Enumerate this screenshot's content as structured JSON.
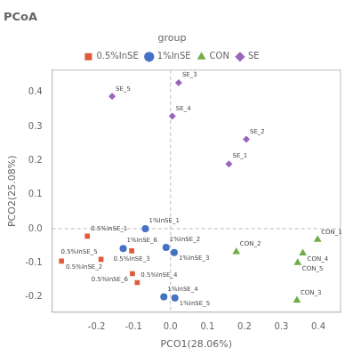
{
  "chart_data": {
    "type": "scatter",
    "title": "PCoA",
    "xlabel": "PCO1(28.06%)",
    "ylabel": "PCO2(25.08%)",
    "xlim": [
      -0.32,
      0.46
    ],
    "ylim": [
      -0.245,
      0.465
    ],
    "xticks": [
      -0.2,
      -0.1,
      {
        "value": 0,
        "label": "0.0"
      },
      0.1,
      0.2,
      0.3,
      0.4
    ],
    "yticks": [
      -0.2,
      -0.1,
      {
        "value": 0,
        "label": "0.0"
      },
      0.1,
      0.2,
      0.3,
      0.4
    ],
    "vline": 0.0,
    "hline": 0.0,
    "grid": false,
    "legend": "top",
    "legend_title": "group",
    "series": [
      {
        "name": "0.5%InSE",
        "color": "#e05a3a",
        "marker": "square",
        "x": [
          -0.225,
          -0.295,
          -0.105,
          -0.09,
          -0.188,
          -0.103
        ],
        "values": [
          -0.022,
          -0.095,
          -0.065,
          -0.158,
          -0.09,
          -0.132
        ],
        "point_labels": [
          "0.5%InSE_1",
          "0.5%InSE_2",
          "0.5%InSE_3",
          "0.5%InSE_4",
          "0.5%InSE_5",
          "0.5%InSE_6"
        ]
      },
      {
        "name": "1%InSE",
        "color": "#4472c4",
        "marker": "circle",
        "x": [
          -0.068,
          -0.012,
          0.01,
          -0.018,
          0.012,
          -0.128
        ],
        "values": [
          0.0,
          -0.055,
          -0.07,
          -0.2,
          -0.203,
          -0.058
        ],
        "point_labels": [
          "1%InSE_1",
          "1%InSE_2",
          "1%InSE_3",
          "1%InSE_4",
          "1%InSE_5",
          "1%InSE_6"
        ]
      },
      {
        "name": "CON",
        "color": "#70ad47",
        "marker": "triangle",
        "x": [
          0.398,
          0.178,
          0.342,
          0.358,
          0.344
        ],
        "values": [
          -0.032,
          -0.068,
          -0.21,
          -0.072,
          -0.1
        ],
        "point_labels": [
          "CON_1",
          "CON_2",
          "CON_3",
          "CON_4",
          "CON_5"
        ]
      },
      {
        "name": "SE",
        "color": "#9966bb",
        "marker": "diamond",
        "x": [
          0.158,
          0.205,
          0.022,
          0.005,
          -0.158
        ],
        "values": [
          0.19,
          0.262,
          0.428,
          0.33,
          0.388
        ],
        "point_labels": [
          "SE_1",
          "SE_2",
          "SE_3",
          "SE_4",
          "SE_5"
        ]
      }
    ]
  }
}
